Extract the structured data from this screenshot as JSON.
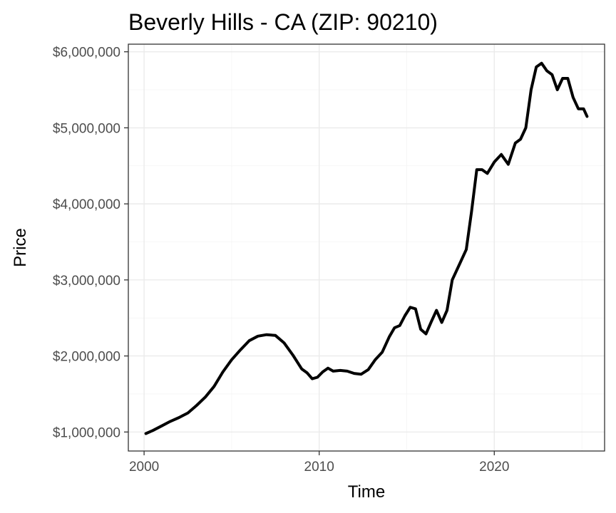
{
  "chart_data": {
    "type": "line",
    "title": "Beverly Hills - CA (ZIP: 90210)",
    "xlabel": "Time",
    "ylabel": "Price",
    "xlim": [
      1999.1,
      2026.3
    ],
    "ylim": [
      750000,
      6100000
    ],
    "x_ticks": [
      2000,
      2010,
      2020
    ],
    "x_tick_labels": [
      "2000",
      "2010",
      "2020"
    ],
    "y_ticks": [
      1000000,
      2000000,
      3000000,
      4000000,
      5000000,
      6000000
    ],
    "y_tick_labels": [
      "$1,000,000",
      "$2,000,000",
      "$3,000,000",
      "$4,000,000",
      "$5,000,000",
      "$6,000,000"
    ],
    "grid": true,
    "legend": "none",
    "series": [
      {
        "color": "#000000",
        "x": [
          2000.1,
          2000.5,
          2001.0,
          2001.5,
          2002.0,
          2002.5,
          2003.0,
          2003.5,
          2004.0,
          2004.5,
          2005.0,
          2005.5,
          2006.0,
          2006.5,
          2007.0,
          2007.5,
          2008.0,
          2008.5,
          2009.0,
          2009.3,
          2009.6,
          2009.9,
          2010.2,
          2010.5,
          2010.8,
          2011.2,
          2011.6,
          2012.0,
          2012.4,
          2012.8,
          2013.2,
          2013.6,
          2014.0,
          2014.3,
          2014.6,
          2014.9,
          2015.2,
          2015.5,
          2015.8,
          2016.1,
          2016.4,
          2016.7,
          2017.0,
          2017.3,
          2017.6,
          2018.0,
          2018.4,
          2018.7,
          2019.0,
          2019.3,
          2019.6,
          2020.0,
          2020.4,
          2020.8,
          2021.2,
          2021.5,
          2021.8,
          2022.1,
          2022.4,
          2022.7,
          2023.0,
          2023.3,
          2023.6,
          2023.9,
          2024.2,
          2024.5,
          2024.8,
          2025.1,
          2025.3
        ],
        "y": [
          980000,
          1020000,
          1080000,
          1140000,
          1190000,
          1250000,
          1350000,
          1460000,
          1600000,
          1790000,
          1950000,
          2080000,
          2200000,
          2260000,
          2280000,
          2270000,
          2170000,
          2010000,
          1830000,
          1780000,
          1700000,
          1720000,
          1790000,
          1840000,
          1800000,
          1810000,
          1800000,
          1770000,
          1760000,
          1820000,
          1950000,
          2050000,
          2250000,
          2370000,
          2400000,
          2530000,
          2640000,
          2620000,
          2350000,
          2290000,
          2450000,
          2600000,
          2440000,
          2600000,
          3000000,
          3200000,
          3400000,
          3900000,
          4450000,
          4450000,
          4400000,
          4550000,
          4650000,
          4520000,
          4800000,
          4850000,
          5000000,
          5500000,
          5800000,
          5850000,
          5750000,
          5700000,
          5500000,
          5650000,
          5650000,
          5400000,
          5250000,
          5250000,
          5150000
        ]
      }
    ]
  }
}
